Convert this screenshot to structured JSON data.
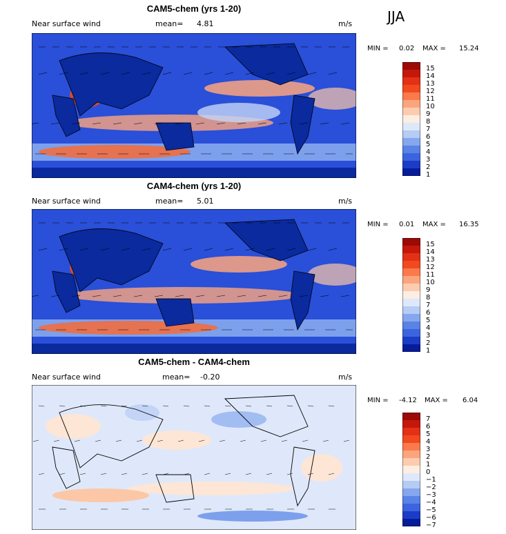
{
  "season": "JJA",
  "colors": {
    "positive": [
      "#fde6d6",
      "#fcc7a6",
      "#fba57e",
      "#fa8557",
      "#f76a36",
      "#f04a1e",
      "#e23114",
      "#cc1a0e",
      "#a80606",
      "#800000"
    ],
    "negative": [
      "#dfe8fa",
      "#c3d4f6",
      "#a2bdf2",
      "#7da0ec",
      "#5a83e6",
      "#3c64df",
      "#2448d4",
      "#132fbb",
      "#061c99",
      "#000e72"
    ],
    "land": "#000000"
  },
  "panels": [
    {
      "title": "CAM5-chem (yrs 1-20)",
      "left_label": "Near surface wind",
      "mean_label": "mean=",
      "mean_value": "4.81",
      "units": "m/s",
      "min_label": "MIN =",
      "min_value": "0.02",
      "max_label": "MAX =",
      "max_value": "15.24",
      "colorbar_labels": [
        "15",
        "14",
        "13",
        "12",
        "11",
        "10",
        "9",
        "8",
        "7",
        "6",
        "5",
        "4",
        "3",
        "2",
        "1"
      ]
    },
    {
      "title": "CAM4-chem (yrs 1-20)",
      "left_label": "Near surface wind",
      "mean_label": "mean=",
      "mean_value": "5.01",
      "units": "m/s",
      "min_label": "MIN =",
      "min_value": "0.01",
      "max_label": "MAX =",
      "max_value": "16.35",
      "colorbar_labels": [
        "15",
        "14",
        "13",
        "12",
        "11",
        "10",
        "9",
        "8",
        "7",
        "6",
        "5",
        "4",
        "3",
        "2",
        "1"
      ]
    },
    {
      "title": "CAM5-chem - CAM4-chem",
      "left_label": "Near surface wind",
      "mean_label": "mean=",
      "mean_value": "-0.20",
      "units": "m/s",
      "min_label": "MIN =",
      "min_value": "-4.12",
      "max_label": "MAX =",
      "max_value": "6.04",
      "colorbar_labels": [
        "7",
        "6",
        "5",
        "4",
        "3",
        "2",
        "1",
        "0",
        "−1",
        "−2",
        "−3",
        "−4",
        "−5",
        "−6",
        "−7"
      ]
    }
  ]
}
